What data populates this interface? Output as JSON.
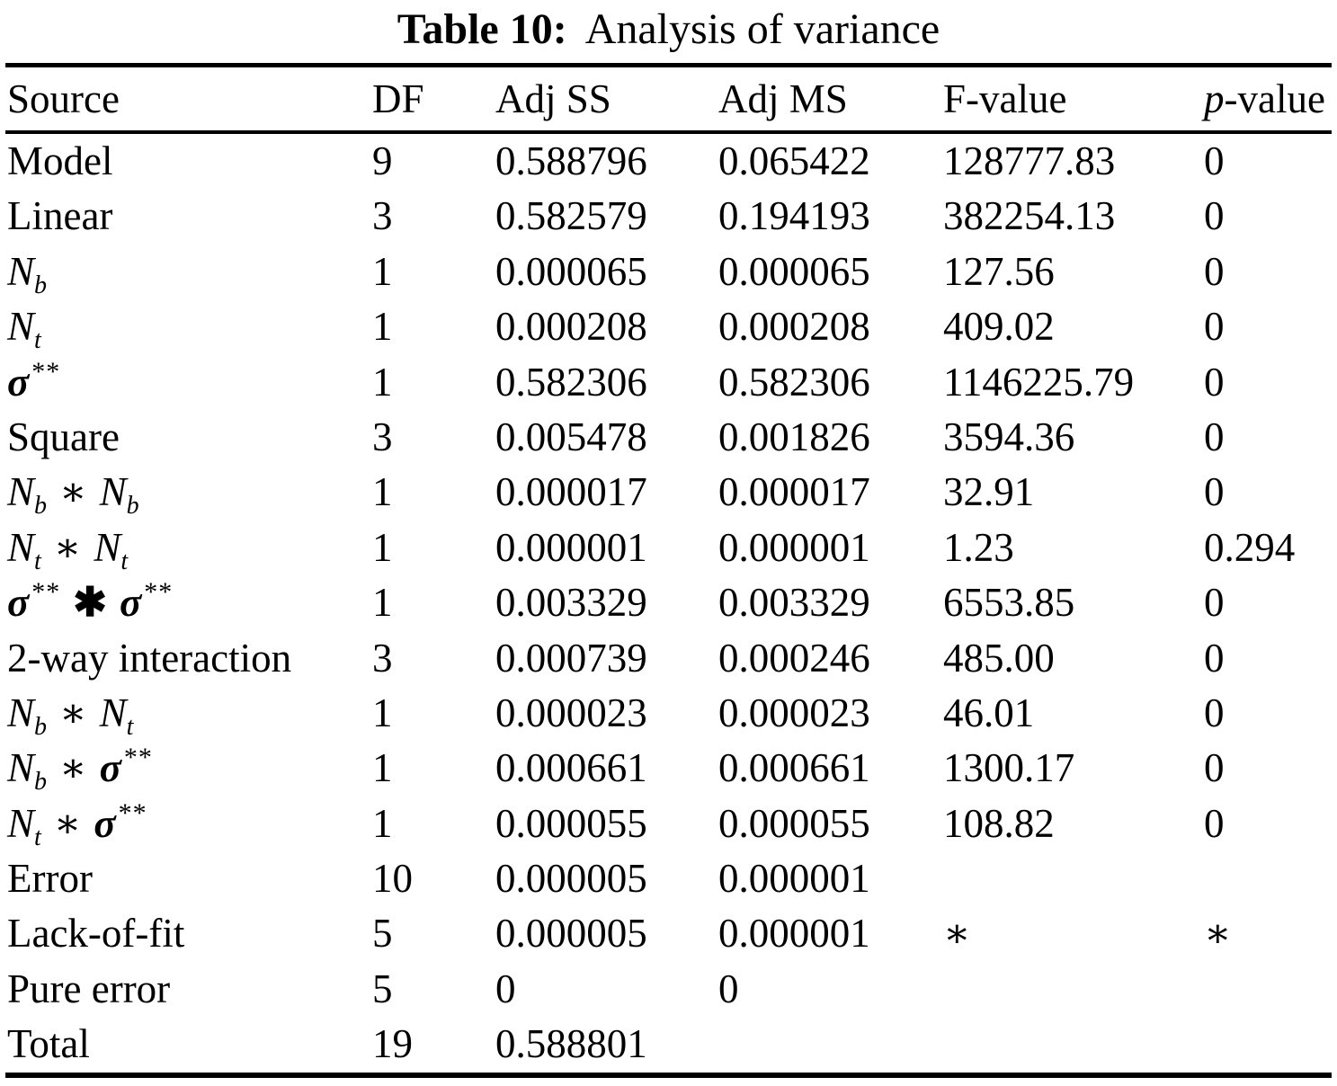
{
  "title": {
    "label": "Table 10:",
    "caption": "Analysis of variance"
  },
  "table": {
    "columns": [
      {
        "name": "source",
        "tokens": [
          [
            "t",
            "Source"
          ]
        ]
      },
      {
        "name": "df",
        "tokens": [
          [
            "t",
            "DF"
          ]
        ]
      },
      {
        "name": "adj-ss",
        "tokens": [
          [
            "t",
            "Adj SS"
          ]
        ]
      },
      {
        "name": "adj-ms",
        "tokens": [
          [
            "t",
            "Adj MS"
          ]
        ]
      },
      {
        "name": "f-value",
        "tokens": [
          [
            "t",
            "F-value"
          ]
        ]
      },
      {
        "name": "p-value",
        "tokens": [
          [
            "v",
            "p"
          ],
          [
            "t",
            "-value"
          ]
        ]
      }
    ],
    "rows": [
      {
        "source": [
          [
            "t",
            "Model"
          ]
        ],
        "df": "9",
        "adj_ss": "0.588796",
        "adj_ms": "0.065422",
        "f": "128777.83",
        "p": "0"
      },
      {
        "source": [
          [
            "t",
            "Linear"
          ]
        ],
        "df": "3",
        "adj_ss": "0.582579",
        "adj_ms": "0.194193",
        "f": "382254.13",
        "p": "0"
      },
      {
        "source": [
          [
            "v",
            "N"
          ],
          [
            "sub",
            "b"
          ]
        ],
        "df": "1",
        "adj_ss": "0.000065",
        "adj_ms": "0.000065",
        "f": "127.56",
        "p": "0"
      },
      {
        "source": [
          [
            "v",
            "N"
          ],
          [
            "sub",
            "t"
          ]
        ],
        "df": "1",
        "adj_ss": "0.000208",
        "adj_ms": "0.000208",
        "f": "409.02",
        "p": "0"
      },
      {
        "source": [
          [
            "vb",
            "σ"
          ],
          [
            "sup",
            "**"
          ]
        ],
        "df": "1",
        "adj_ss": "0.582306",
        "adj_ms": "0.582306",
        "f": "1146225.79",
        "p": "0"
      },
      {
        "source": [
          [
            "t",
            "Square"
          ]
        ],
        "df": "3",
        "adj_ss": "0.005478",
        "adj_ms": "0.001826",
        "f": "3594.36",
        "p": "0"
      },
      {
        "source": [
          [
            "v",
            "N"
          ],
          [
            "sub",
            "b"
          ],
          [
            "op",
            "∗"
          ],
          [
            "v",
            "N"
          ],
          [
            "sub",
            "b"
          ]
        ],
        "df": "1",
        "adj_ss": "0.000017",
        "adj_ms": "0.000017",
        "f": "32.91",
        "p": "0"
      },
      {
        "source": [
          [
            "v",
            "N"
          ],
          [
            "sub",
            "t"
          ],
          [
            "op",
            "∗"
          ],
          [
            "v",
            "N"
          ],
          [
            "sub",
            "t"
          ]
        ],
        "df": "1",
        "adj_ss": "0.000001",
        "adj_ms": "0.000001",
        "f": "1.23",
        "p": "0.294"
      },
      {
        "source": [
          [
            "vb",
            "σ"
          ],
          [
            "sup",
            "**"
          ],
          [
            "opb",
            "✱"
          ],
          [
            "vb",
            "σ"
          ],
          [
            "sup",
            "**"
          ]
        ],
        "df": "1",
        "adj_ss": "0.003329",
        "adj_ms": "0.003329",
        "f": "6553.85",
        "p": "0"
      },
      {
        "source": [
          [
            "t",
            "2-way interaction"
          ]
        ],
        "df": "3",
        "adj_ss": "0.000739",
        "adj_ms": "0.000246",
        "f": "485.00",
        "p": "0"
      },
      {
        "source": [
          [
            "v",
            "N"
          ],
          [
            "sub",
            "b"
          ],
          [
            "op",
            "∗"
          ],
          [
            "v",
            "N"
          ],
          [
            "sub",
            "t"
          ]
        ],
        "df": "1",
        "adj_ss": "0.000023",
        "adj_ms": "0.000023",
        "f": "46.01",
        "p": "0"
      },
      {
        "source": [
          [
            "v",
            "N"
          ],
          [
            "sub",
            "b"
          ],
          [
            "op",
            "∗"
          ],
          [
            "vb",
            "σ"
          ],
          [
            "sup",
            "**"
          ]
        ],
        "df": "1",
        "adj_ss": "0.000661",
        "adj_ms": "0.000661",
        "f": "1300.17",
        "p": "0"
      },
      {
        "source": [
          [
            "v",
            "N"
          ],
          [
            "sub",
            "t"
          ],
          [
            "op",
            "∗"
          ],
          [
            "vb",
            "σ"
          ],
          [
            "sup",
            "**"
          ]
        ],
        "df": "1",
        "adj_ss": "0.000055",
        "adj_ms": "0.000055",
        "f": "108.82",
        "p": "0"
      },
      {
        "source": [
          [
            "t",
            "Error"
          ]
        ],
        "df": "10",
        "adj_ss": "0.000005",
        "adj_ms": "0.000001",
        "f": "",
        "p": ""
      },
      {
        "source": [
          [
            "t",
            "Lack-of-fit"
          ]
        ],
        "df": "5",
        "adj_ss": "0.000005",
        "adj_ms": "0.000001",
        "f": "∗",
        "p": "∗"
      },
      {
        "source": [
          [
            "t",
            "Pure error"
          ]
        ],
        "df": "5",
        "adj_ss": "0",
        "adj_ms": "0",
        "f": "",
        "p": ""
      },
      {
        "source": [
          [
            "t",
            "Total"
          ]
        ],
        "df": "19",
        "adj_ss": "0.588801",
        "adj_ms": "",
        "f": "",
        "p": ""
      }
    ]
  }
}
